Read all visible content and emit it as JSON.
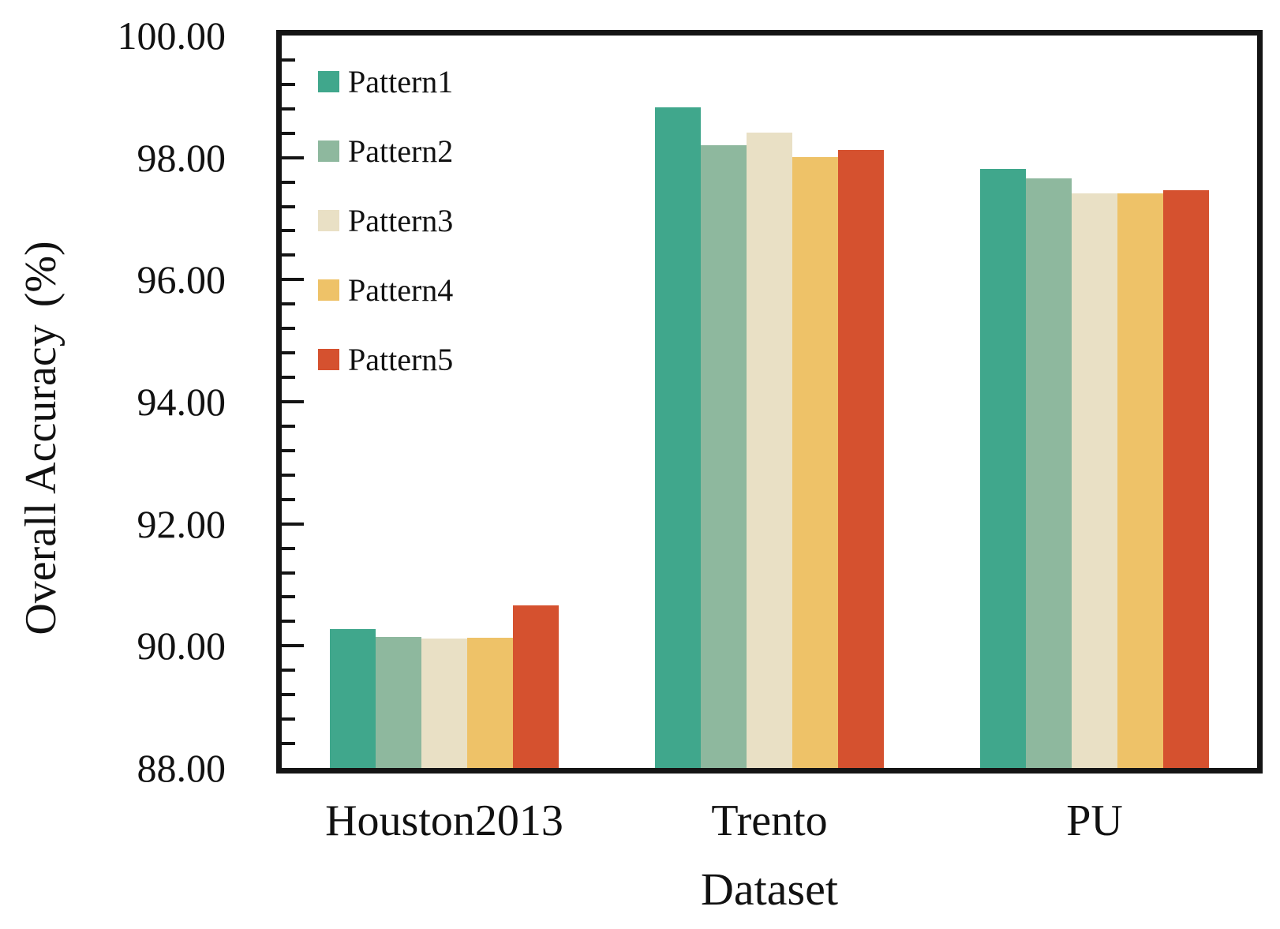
{
  "figure": {
    "y_axis_title_main": "Overall Accuracy",
    "y_axis_title_unit": "(%)",
    "x_axis_title": "Dataset"
  },
  "chart_data": {
    "type": "bar",
    "title": "",
    "xlabel": "Dataset",
    "ylabel": "Overall Accuracy (%)",
    "categories": [
      "Houston2013",
      "Trento",
      "PU"
    ],
    "series": [
      {
        "name": "Pattern1",
        "color": "#40A78C",
        "values": [
          90.28,
          98.82,
          97.82
        ]
      },
      {
        "name": "Pattern2",
        "color": "#8EB89E",
        "values": [
          90.15,
          98.2,
          97.66
        ]
      },
      {
        "name": "Pattern3",
        "color": "#E9E0C5",
        "values": [
          90.12,
          98.41,
          97.41
        ]
      },
      {
        "name": "Pattern4",
        "color": "#EEC268",
        "values": [
          90.13,
          98.01,
          97.41
        ]
      },
      {
        "name": "Pattern5",
        "color": "#D5512F",
        "values": [
          90.66,
          98.13,
          97.46
        ]
      }
    ],
    "ylim": [
      88,
      100
    ],
    "ytick_labels": [
      "100.00",
      "98.00",
      "96.00",
      "94.00",
      "92.00",
      "90.00",
      "88.00"
    ],
    "ytick_values": [
      100,
      98,
      96,
      94,
      92,
      90,
      88
    ],
    "ytick_step_major": 2,
    "ytick_step_minor": 0.4,
    "grid": false,
    "legend_position": "upper-left-inside",
    "axis_color": "#141414"
  }
}
